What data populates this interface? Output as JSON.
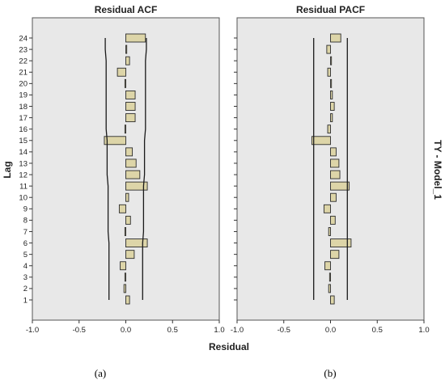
{
  "figure": {
    "ylabel": "Lag",
    "xlabel": "Residual",
    "right_label": "TY - Model_1",
    "captions": [
      "(a)",
      "(b)"
    ],
    "colors": {
      "plot_bg": "#e8e8e8",
      "bar_fill": "#ddd5a8",
      "bar_stroke": "#2b2b2b",
      "line": "#1a1a1a"
    }
  },
  "chart_data": [
    {
      "type": "bar",
      "orientation": "horizontal",
      "title": "Residual ACF",
      "xlim": [
        -1.0,
        1.0
      ],
      "xticks": [
        "-1.0",
        "-0.5",
        "0.0",
        "0.5",
        "1.0"
      ],
      "categories": [
        "1",
        "2",
        "3",
        "4",
        "5",
        "6",
        "7",
        "8",
        "9",
        "10",
        "11",
        "12",
        "13",
        "14",
        "15",
        "16",
        "17",
        "18",
        "19",
        "20",
        "21",
        "22",
        "23",
        "24"
      ],
      "values": [
        0.04,
        -0.02,
        -0.01,
        -0.06,
        0.09,
        0.23,
        -0.01,
        0.05,
        -0.07,
        0.03,
        0.23,
        0.15,
        0.11,
        0.07,
        -0.23,
        -0.01,
        0.1,
        0.1,
        0.1,
        -0.01,
        -0.09,
        0.04,
        0.01,
        0.21
      ],
      "confidence_limits": {
        "upper": [
          0.18,
          0.18,
          0.18,
          0.18,
          0.18,
          0.18,
          0.19,
          0.19,
          0.19,
          0.19,
          0.19,
          0.2,
          0.2,
          0.2,
          0.2,
          0.21,
          0.21,
          0.21,
          0.21,
          0.21,
          0.21,
          0.21,
          0.22,
          0.22
        ],
        "lower": [
          -0.18,
          -0.18,
          -0.18,
          -0.18,
          -0.18,
          -0.18,
          -0.19,
          -0.19,
          -0.19,
          -0.19,
          -0.19,
          -0.2,
          -0.2,
          -0.2,
          -0.2,
          -0.21,
          -0.21,
          -0.21,
          -0.21,
          -0.21,
          -0.21,
          -0.21,
          -0.22,
          -0.22
        ]
      }
    },
    {
      "type": "bar",
      "orientation": "horizontal",
      "title": "Residual PACF",
      "xlim": [
        -1.0,
        1.0
      ],
      "xticks": [
        "-1.0",
        "-0.5",
        "0.0",
        "0.5",
        "1.0"
      ],
      "categories": [
        "1",
        "2",
        "3",
        "4",
        "5",
        "6",
        "7",
        "8",
        "9",
        "10",
        "11",
        "12",
        "13",
        "14",
        "15",
        "16",
        "17",
        "18",
        "19",
        "20",
        "21",
        "22",
        "23",
        "24"
      ],
      "values": [
        0.04,
        -0.02,
        -0.01,
        -0.06,
        0.09,
        0.22,
        -0.02,
        0.05,
        -0.07,
        0.06,
        0.2,
        0.1,
        0.09,
        0.06,
        -0.2,
        -0.03,
        0.02,
        0.04,
        0.02,
        0.01,
        -0.03,
        0.01,
        -0.04,
        0.11
      ],
      "confidence_limits": {
        "upper": 0.18,
        "lower": -0.18
      }
    }
  ]
}
